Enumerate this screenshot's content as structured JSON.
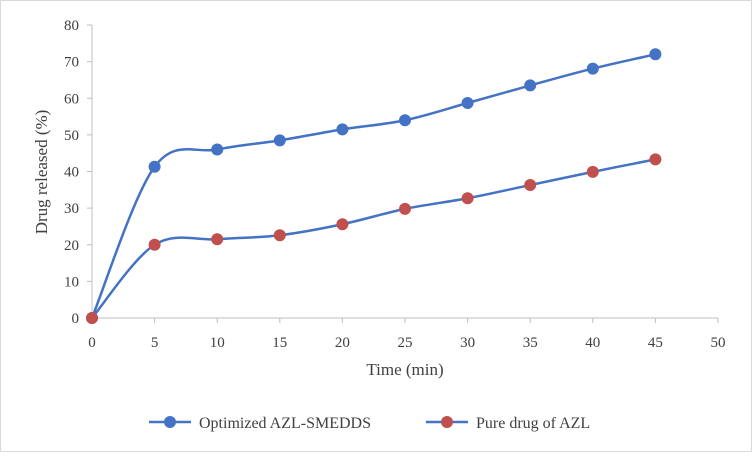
{
  "chart_data": {
    "type": "line",
    "title": "",
    "xlabel": "Time (min)",
    "ylabel": "Drug released (%)",
    "xlim": [
      0,
      50
    ],
    "ylim": [
      0,
      80
    ],
    "xticks": [
      0,
      5,
      10,
      15,
      20,
      25,
      30,
      35,
      40,
      45,
      50
    ],
    "yticks": [
      0,
      10,
      20,
      30,
      40,
      50,
      60,
      70,
      80
    ],
    "grid": false,
    "smooth": true,
    "legend_position": "bottom",
    "x": [
      0,
      5,
      10,
      15,
      20,
      25,
      30,
      35,
      40,
      45
    ],
    "series": [
      {
        "name": "Optimized AZL-SMEDDS",
        "color": "#4472c4",
        "marker_color": "#4472c4",
        "values": [
          0,
          41.3,
          46.0,
          48.5,
          51.5,
          54.0,
          58.7,
          63.5,
          68.1,
          72.0
        ]
      },
      {
        "name": "Pure drug of AZL",
        "color": "#4472c4",
        "marker_color": "#c0504d",
        "values": [
          0,
          20.0,
          21.5,
          22.6,
          25.6,
          29.8,
          32.7,
          36.3,
          39.9,
          43.3
        ]
      }
    ]
  }
}
